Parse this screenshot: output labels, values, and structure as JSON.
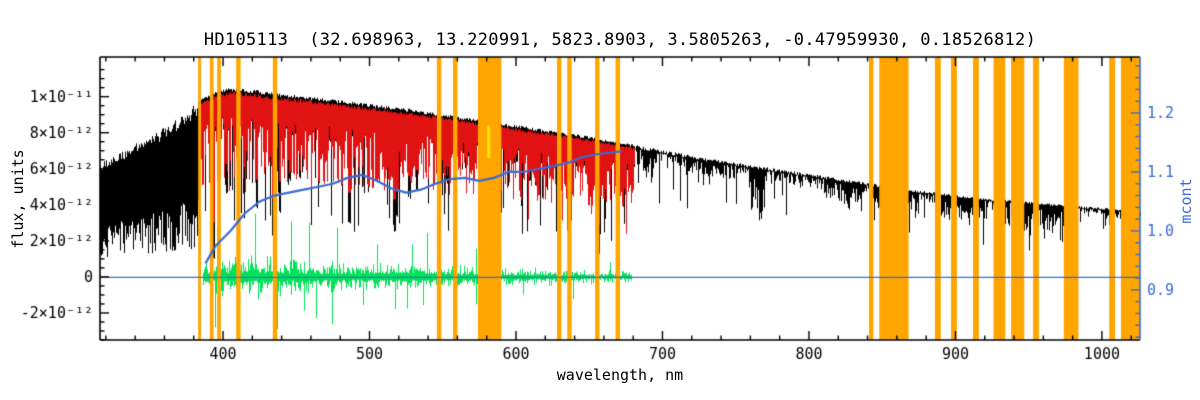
{
  "chart_data": {
    "type": "line",
    "title": "HD105113  (32.698963, 13.220991, 5823.8903, 3.5805263, -0.47959930, 0.18526812)",
    "xlabel": "wavelength, nm",
    "ylabel_left": "flux, units",
    "ylabel_right": "mcont",
    "xlim": [
      316,
      1026
    ],
    "ylim_flux": [
      -3.5e-12,
      1.22e-11
    ],
    "ylim_mcont": [
      0.815,
      1.295
    ],
    "x_ticks": [
      {
        "v": 400,
        "label": "400"
      },
      {
        "v": 500,
        "label": "500"
      },
      {
        "v": 600,
        "label": "600"
      },
      {
        "v": 700,
        "label": "700"
      },
      {
        "v": 800,
        "label": "800"
      },
      {
        "v": 900,
        "label": "900"
      },
      {
        "v": 1000,
        "label": "1000"
      }
    ],
    "x_minor_step": 20,
    "flux_ticks": [
      {
        "v": -2e-12,
        "label": "-2×10⁻¹²"
      },
      {
        "v": 0,
        "label": "0"
      },
      {
        "v": 2e-12,
        "label": "2×10⁻¹²"
      },
      {
        "v": 4e-12,
        "label": "4×10⁻¹²"
      },
      {
        "v": 6e-12,
        "label": "6×10⁻¹²"
      },
      {
        "v": 8e-12,
        "label": "8×10⁻¹²"
      },
      {
        "v": 1e-11,
        "label": "1×10⁻¹¹"
      }
    ],
    "flux_minor_step": 5e-13,
    "mcont_ticks": [
      {
        "v": 0.9,
        "label": "0.9"
      },
      {
        "v": 1.0,
        "label": "1.0"
      },
      {
        "v": 1.1,
        "label": "1.1"
      },
      {
        "v": 1.2,
        "label": "1.2"
      }
    ],
    "mcont_minor_step": 0.02,
    "colors": {
      "black": "#000000",
      "red": "#e11212",
      "green": "#00e356",
      "blue": "#3b6bd5",
      "orange": "#ffa500",
      "yellow": "#ffe800"
    },
    "regions": {
      "uv_end": 384,
      "red_start": 384,
      "red_end": 681,
      "green_start": 386,
      "green_end": 679
    },
    "black_envelope": [
      [
        316,
        6.3e-12
      ],
      [
        330,
        7e-12
      ],
      [
        345,
        7.6e-12
      ],
      [
        360,
        8.3e-12
      ],
      [
        375,
        9.2e-12
      ],
      [
        385,
        9.9e-12
      ],
      [
        395,
        1.03e-11
      ],
      [
        405,
        1.05e-11
      ],
      [
        420,
        1.04e-11
      ],
      [
        435,
        1.02e-11
      ],
      [
        450,
        1.01e-11
      ],
      [
        470,
        9.9e-12
      ],
      [
        490,
        9.7e-12
      ],
      [
        510,
        9.5e-12
      ],
      [
        530,
        9.3e-12
      ],
      [
        550,
        9.05e-12
      ],
      [
        570,
        8.8e-12
      ],
      [
        590,
        8.55e-12
      ],
      [
        610,
        8.3e-12
      ],
      [
        630,
        8.05e-12
      ],
      [
        650,
        7.8e-12
      ],
      [
        670,
        7.5e-12
      ],
      [
        690,
        7.2e-12
      ],
      [
        710,
        6.9e-12
      ],
      [
        730,
        6.6e-12
      ],
      [
        750,
        6.35e-12
      ],
      [
        770,
        6.1e-12
      ],
      [
        790,
        5.85e-12
      ],
      [
        810,
        5.6e-12
      ],
      [
        830,
        5.35e-12
      ],
      [
        850,
        5.1e-12
      ],
      [
        870,
        4.85e-12
      ],
      [
        890,
        4.65e-12
      ],
      [
        910,
        4.45e-12
      ],
      [
        930,
        4.3e-12
      ],
      [
        950,
        4.18e-12
      ],
      [
        970,
        4.02e-12
      ],
      [
        990,
        3.9e-12
      ],
      [
        1010,
        3.78e-12
      ],
      [
        1026,
        3.65e-12
      ]
    ],
    "strong_lines": [
      [
        393.4,
        0.88
      ],
      [
        396.9,
        0.82
      ],
      [
        402.0,
        0.5
      ],
      [
        410.2,
        0.75
      ],
      [
        414.0,
        0.5
      ],
      [
        422.7,
        0.6
      ],
      [
        434.0,
        0.72
      ],
      [
        438.4,
        0.6
      ],
      [
        445.0,
        0.45
      ],
      [
        452.0,
        0.4
      ],
      [
        486.1,
        0.65
      ],
      [
        495.0,
        0.45
      ],
      [
        516.7,
        0.68
      ],
      [
        518.4,
        0.62
      ],
      [
        527.0,
        0.5
      ],
      [
        532.0,
        0.45
      ],
      [
        553.0,
        0.4
      ],
      [
        589.0,
        0.55
      ],
      [
        589.6,
        0.5
      ],
      [
        610.0,
        0.35
      ],
      [
        656.3,
        0.78
      ],
      [
        670.0,
        0.3
      ]
    ],
    "telluric_clusters": [
      [
        686,
        695,
        0.18
      ],
      [
        716,
        734,
        0.12
      ],
      [
        759,
        770,
        0.38
      ],
      [
        810,
        838,
        0.18
      ],
      [
        840,
        875,
        0.28
      ],
      [
        890,
        920,
        0.25
      ],
      [
        928,
        980,
        0.3
      ],
      [
        1000,
        1020,
        0.15
      ]
    ],
    "green_amp": [
      [
        386,
        1.1e-12
      ],
      [
        400,
        1.35e-12
      ],
      [
        415,
        1.45e-12
      ],
      [
        430,
        1.35e-12
      ],
      [
        445,
        1.25e-12
      ],
      [
        460,
        1.15e-12
      ],
      [
        475,
        1.05e-12
      ],
      [
        490,
        1e-12
      ],
      [
        505,
        9.5e-13
      ],
      [
        520,
        1.1e-12
      ],
      [
        535,
        1.05e-12
      ],
      [
        550,
        8.5e-13
      ],
      [
        565,
        7.5e-13
      ],
      [
        580,
        7e-13
      ],
      [
        595,
        6.5e-13
      ],
      [
        610,
        6e-13
      ],
      [
        625,
        5.5e-13
      ],
      [
        640,
        5e-13
      ],
      [
        655,
        4.5e-13
      ],
      [
        670,
        4.2e-13
      ],
      [
        680,
        4e-13
      ]
    ],
    "blue_mcont": [
      [
        388,
        0.945
      ],
      [
        395,
        0.975
      ],
      [
        405,
        1.0
      ],
      [
        415,
        1.03
      ],
      [
        425,
        1.05
      ],
      [
        435,
        1.06
      ],
      [
        445,
        1.065
      ],
      [
        455,
        1.07
      ],
      [
        465,
        1.075
      ],
      [
        475,
        1.08
      ],
      [
        485,
        1.09
      ],
      [
        495,
        1.095
      ],
      [
        505,
        1.085
      ],
      [
        515,
        1.072
      ],
      [
        525,
        1.065
      ],
      [
        535,
        1.07
      ],
      [
        545,
        1.08
      ],
      [
        555,
        1.088
      ],
      [
        565,
        1.09
      ],
      [
        575,
        1.085
      ],
      [
        585,
        1.09
      ],
      [
        595,
        1.1
      ],
      [
        605,
        1.1
      ],
      [
        615,
        1.105
      ],
      [
        625,
        1.11
      ],
      [
        635,
        1.115
      ],
      [
        645,
        1.125
      ],
      [
        655,
        1.13
      ],
      [
        665,
        1.133
      ],
      [
        672,
        1.135
      ]
    ],
    "zero_line_flux": 0,
    "orange_bands": [
      [
        383,
        385
      ],
      [
        391,
        393.5
      ],
      [
        396,
        398.5
      ],
      [
        409,
        412
      ],
      [
        434,
        437
      ],
      [
        546,
        549
      ],
      [
        557,
        560
      ],
      [
        574,
        590
      ],
      [
        628,
        631
      ],
      [
        635,
        638
      ],
      [
        654,
        657
      ],
      [
        668,
        671
      ],
      [
        841,
        844
      ],
      [
        848,
        868
      ],
      [
        886,
        890
      ],
      [
        897,
        901
      ],
      [
        912,
        916
      ],
      [
        926,
        934
      ],
      [
        938,
        947
      ],
      [
        953,
        957
      ],
      [
        974,
        984
      ],
      [
        1005,
        1009
      ],
      [
        1013,
        1026
      ]
    ],
    "yellow_spike": {
      "wl": 581,
      "flux_from": 6.6e-12,
      "flux_to": 8.4e-12
    },
    "noise_seed": 1234567
  }
}
